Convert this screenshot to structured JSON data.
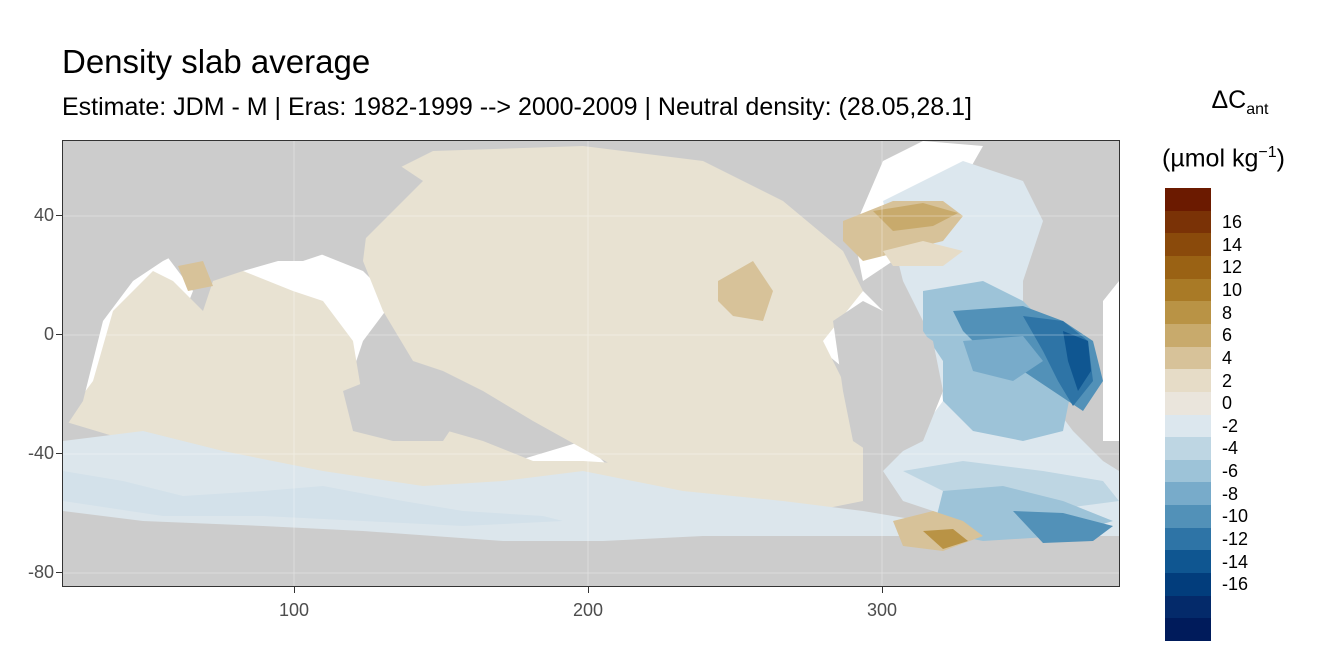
{
  "title": "Density slab average",
  "subtitle": "Estimate: JDM - M | Eras: 1982-1999 --> 2000-2009 | Neutral density: (28.05,28.1]",
  "legend": {
    "title_symbol": "ΔC",
    "title_sub": "ant",
    "unit_pre": "(µmol kg",
    "unit_sup": "−1",
    "unit_post": ")",
    "colors": [
      "#6b1a00",
      "#7a3206",
      "#8a4a0b",
      "#9a6214",
      "#a97a26",
      "#b99345",
      "#c8aa6c",
      "#d7c299",
      "#e6dcc7",
      "#eae5dc",
      "#dce7ee",
      "#bed6e3",
      "#9dc3d8",
      "#78abca",
      "#5291b8",
      "#2e74a6",
      "#0f5691",
      "#023d7c",
      "#042a6a",
      "#001b5b"
    ],
    "labels": [
      "16",
      "14",
      "12",
      "10",
      "8",
      "6",
      "4",
      "2",
      "0",
      "-2",
      "-4",
      "-6",
      "-8",
      "-10",
      "-12",
      "-14",
      "-16"
    ]
  },
  "axes": {
    "x_ticks": [
      "100",
      "200",
      "300"
    ],
    "y_ticks": [
      "40",
      "0",
      "-40",
      "-80"
    ]
  },
  "map_data": {
    "x_range": [
      20,
      380
    ],
    "y_range": [
      -85,
      65
    ],
    "land_color": "#cccccc",
    "nodata_color": "#ffffff",
    "neutral_color": "#e9e2d3"
  }
}
